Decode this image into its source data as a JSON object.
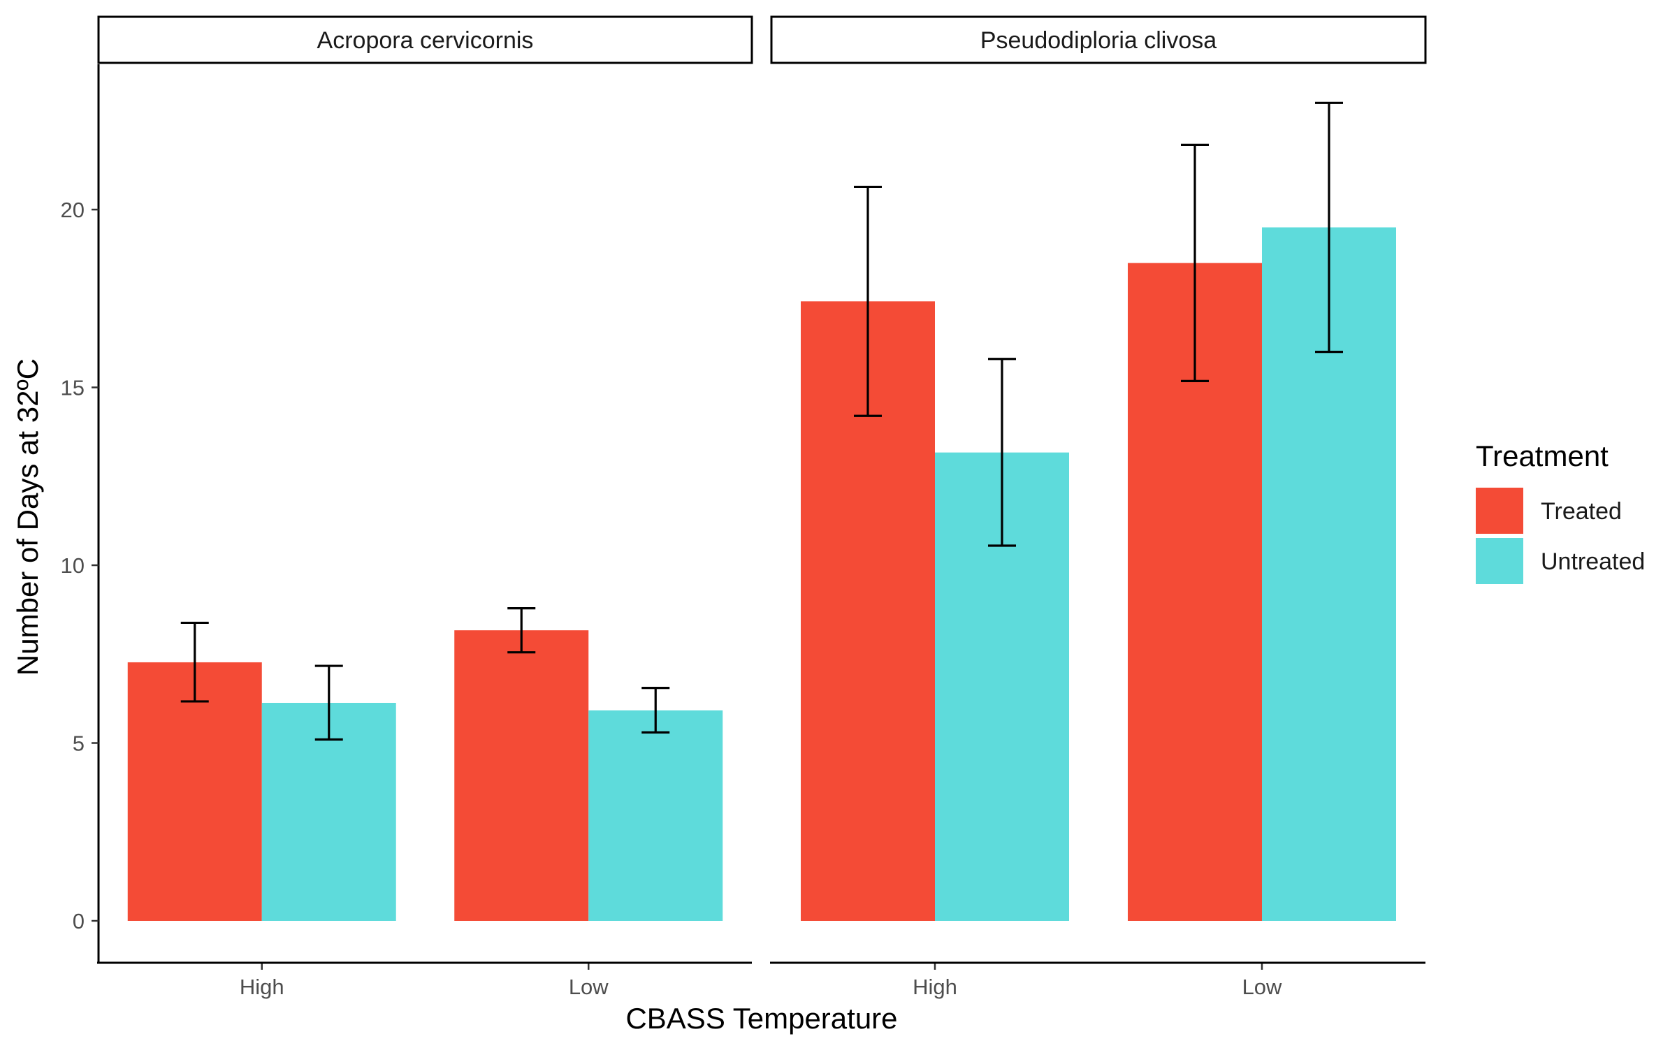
{
  "chart_data": {
    "type": "bar",
    "xlabel": "CBASS Temperature",
    "ylabel": "Number of Days at 32ºC",
    "ylim": [
      0,
      23.5
    ],
    "y_ticks": [
      0,
      5,
      10,
      15,
      20
    ],
    "grid": false,
    "categories": [
      "High",
      "Low"
    ],
    "legend": {
      "title": "Treatment",
      "placement": "right",
      "entries": [
        {
          "name": "Treated",
          "color": "#F44B36"
        },
        {
          "name": "Untreated",
          "color": "#5EDBDB"
        }
      ]
    },
    "facets": [
      {
        "label": "Acropora cervicornis",
        "series": [
          {
            "name": "Treated",
            "values": [
              7.27,
              8.17
            ],
            "err_low": [
              6.17,
              7.55
            ],
            "err_high": [
              8.38,
              8.79
            ]
          },
          {
            "name": "Untreated",
            "values": [
              6.13,
              5.92
            ],
            "err_low": [
              5.1,
              5.3
            ],
            "err_high": [
              7.17,
              6.55
            ]
          }
        ]
      },
      {
        "label": "Pseudodiploria clivosa",
        "series": [
          {
            "name": "Treated",
            "values": [
              17.42,
              18.5
            ],
            "err_low": [
              14.2,
              15.18
            ],
            "err_high": [
              20.64,
              21.82
            ]
          },
          {
            "name": "Untreated",
            "values": [
              13.17,
              19.5
            ],
            "err_low": [
              10.55,
              16.0
            ],
            "err_high": [
              15.8,
              23.0
            ]
          }
        ]
      }
    ]
  }
}
